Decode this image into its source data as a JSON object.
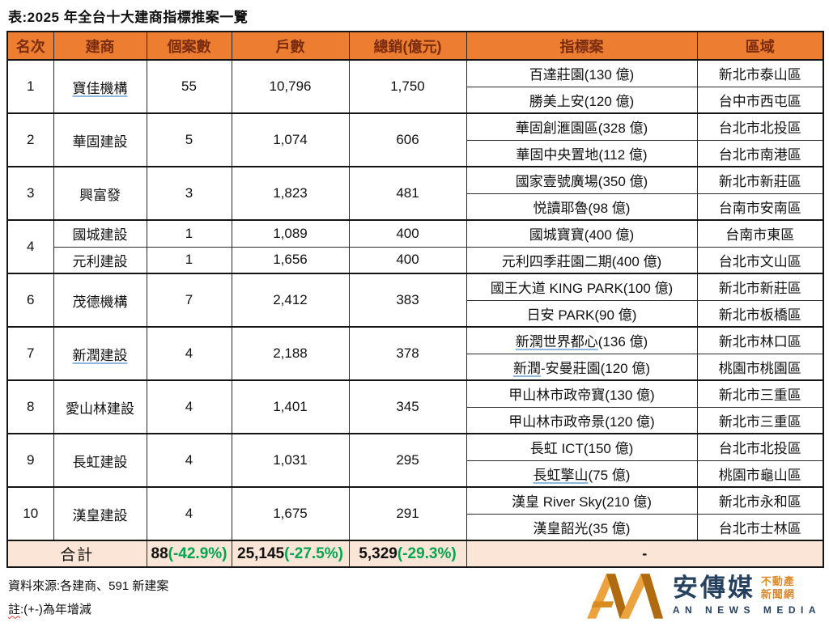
{
  "title": "表:2025 年全台十大建商指標推案一覽",
  "colors": {
    "header_bg": "#ED7D31",
    "header_text": "#7B2D10",
    "total_bg": "#FBE5D6",
    "green": "#00A550",
    "link_underline": "#8FB8DC"
  },
  "chart_data": {
    "type": "table",
    "columns": [
      "名次",
      "建商",
      "個案數",
      "戶數",
      "總銷(億元)",
      "指標案",
      "區域"
    ],
    "groups": [
      {
        "rank": "1",
        "builders": [
          {
            "name": "寶佳機構",
            "underlined": true,
            "cases": "55",
            "units": "10,796",
            "sales": "1,750",
            "projects": [
              {
                "name_u": "",
                "name": "百達莊園(130 億)",
                "region": "新北市泰山區"
              },
              {
                "name_u": "",
                "name": "勝美上安(120 億)",
                "region": "台中市西屯區"
              }
            ]
          }
        ]
      },
      {
        "rank": "2",
        "builders": [
          {
            "name": "華固建設",
            "underlined": false,
            "cases": "5",
            "units": "1,074",
            "sales": "606",
            "projects": [
              {
                "name_u": "",
                "name": "華固創滙園區(328 億)",
                "region": "台北市北投區"
              },
              {
                "name_u": "",
                "name": "華固中央置地(112 億)",
                "region": "台北市南港區"
              }
            ]
          }
        ]
      },
      {
        "rank": "3",
        "builders": [
          {
            "name": "興富發",
            "underlined": false,
            "cases": "3",
            "units": "1,823",
            "sales": "481",
            "projects": [
              {
                "name_u": "",
                "name": "國家壹號廣場(350 億)",
                "region": "新北市新莊區"
              },
              {
                "name_u": "",
                "name": "悦讀耶魯(98 億)",
                "region": "台南市安南區"
              }
            ]
          }
        ]
      },
      {
        "rank": "4",
        "builders": [
          {
            "name": "國城建設",
            "underlined": false,
            "cases": "1",
            "units": "1,089",
            "sales": "400",
            "projects": [
              {
                "name_u": "",
                "name": "國城寶寶(400 億)",
                "region": "台南市東區"
              }
            ]
          },
          {
            "name": "元利建設",
            "underlined": false,
            "cases": "1",
            "units": "1,656",
            "sales": "400",
            "projects": [
              {
                "name_u": "",
                "name": "元利四季莊園二期(400 億)",
                "region": "台北市文山區"
              }
            ]
          }
        ]
      },
      {
        "rank": "6",
        "builders": [
          {
            "name": "茂德機構",
            "underlined": false,
            "cases": "7",
            "units": "2,412",
            "sales": "383",
            "projects": [
              {
                "name_u": "",
                "name": "國王大道 KING PARK(100 億)",
                "region": "新北市新莊區"
              },
              {
                "name_u": "",
                "name": "日安 PARK(90 億)",
                "region": "新北市板橋區"
              }
            ]
          }
        ]
      },
      {
        "rank": "7",
        "builders": [
          {
            "name": "新潤建設",
            "underlined": true,
            "cases": "4",
            "units": "2,188",
            "sales": "378",
            "projects": [
              {
                "name_u": "新潤世界都心",
                "name": "(136 億)",
                "region": "新北市林口區"
              },
              {
                "name_u": "新潤",
                "name": "-安曼莊園(120 億)",
                "region": "桃園市桃園區"
              }
            ]
          }
        ]
      },
      {
        "rank": "8",
        "builders": [
          {
            "name": "愛山林建設",
            "underlined": false,
            "cases": "4",
            "units": "1,401",
            "sales": "345",
            "projects": [
              {
                "name_u": "",
                "name": "甲山林市政帝寶(130 億)",
                "region": "新北市三重區"
              },
              {
                "name_u": "",
                "name": "甲山林市政帝景(120 億)",
                "region": "新北市三重區"
              }
            ]
          }
        ]
      },
      {
        "rank": "9",
        "builders": [
          {
            "name": "長虹建設",
            "underlined": false,
            "cases": "4",
            "units": "1,031",
            "sales": "295",
            "projects": [
              {
                "name_u": "",
                "name": "長虹 ICT(150 億)",
                "region": "台北市北投區"
              },
              {
                "name_u": "長虹擎山",
                "name": "(75 億)",
                "region": "桃園市龜山區"
              }
            ]
          }
        ]
      },
      {
        "rank": "10",
        "builders": [
          {
            "name": "漢皇建設",
            "underlined": false,
            "cases": "4",
            "units": "1,675",
            "sales": "291",
            "projects": [
              {
                "name_u": "",
                "name": "漢皇 River Sky(210 億)",
                "region": "新北市永和區"
              },
              {
                "name_u": "",
                "name": "漢皇韶光(35 億)",
                "region": "台北市士林區"
              }
            ]
          }
        ]
      }
    ],
    "total": {
      "label": "合計",
      "cases": "88",
      "cases_pct": "(-42.9%)",
      "units": "25,145",
      "units_pct": "(-27.5%)",
      "sales": "5,329",
      "sales_pct": "(-29.3%)",
      "projects": "-"
    }
  },
  "footer": {
    "source": "資料來源:各建商、591 新建案",
    "note_head": "註",
    "note_rest": ":(+-)為年增減"
  },
  "logo": {
    "monogram": "AN",
    "brand": "安傳媒",
    "tag_line1": "不動產",
    "tag_line2": "新聞網",
    "subtitle": "AN NEWS MEDIA"
  }
}
